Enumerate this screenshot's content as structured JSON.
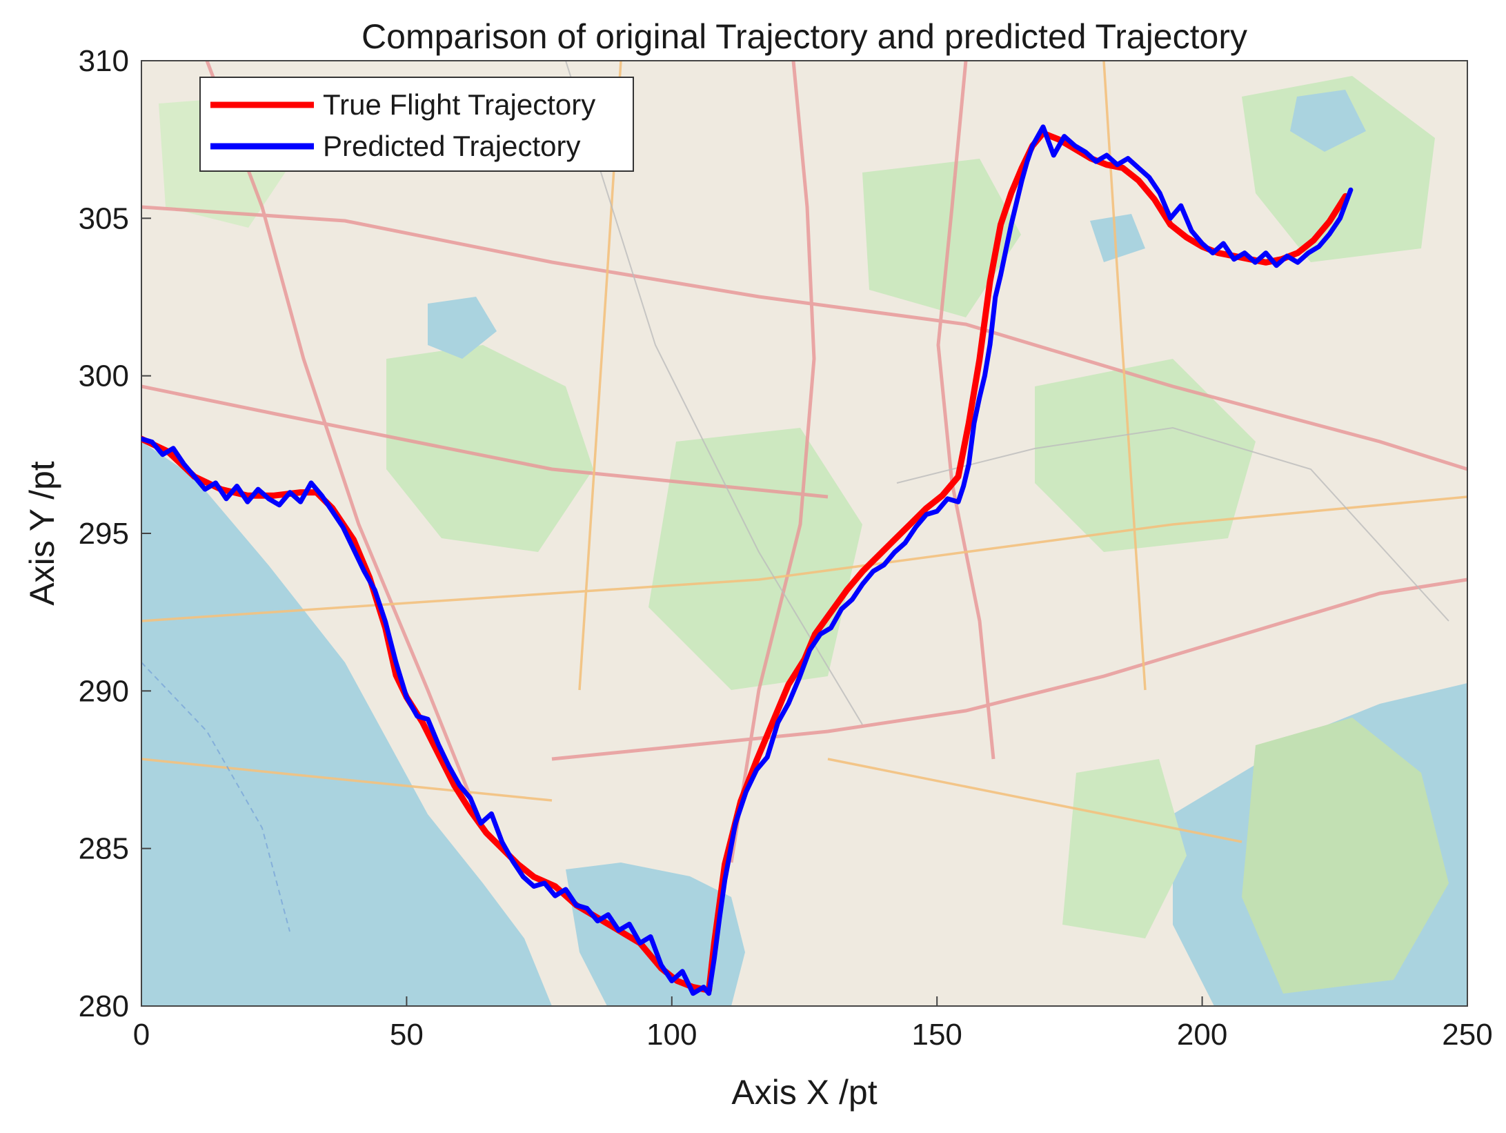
{
  "chart_data": {
    "type": "line",
    "title": "Comparison of original Trajectory and predicted Trajectory",
    "xlabel": "Axis X /pt",
    "ylabel": "Axis Y /pt",
    "xlim": [
      0,
      250
    ],
    "ylim": [
      280,
      310
    ],
    "xticks": [
      "0",
      "50",
      "100",
      "150",
      "200",
      "250"
    ],
    "yticks": [
      "280",
      "285",
      "290",
      "295",
      "300",
      "305",
      "310"
    ],
    "background": "street map",
    "legend_position": "top-left",
    "series": [
      {
        "name": "True Flight Trajectory",
        "color": "#ff0000",
        "x": [
          0,
          5,
          10,
          15,
          20,
          25,
          30,
          33,
          36,
          40,
          43,
          46,
          48,
          50,
          53,
          56,
          59,
          62,
          65,
          68,
          71,
          74,
          78,
          82,
          86,
          90,
          94,
          98,
          101,
          104,
          107,
          108,
          110,
          113,
          116,
          119,
          122,
          125,
          127,
          130,
          133,
          136,
          139,
          142,
          145,
          148,
          151,
          154,
          156,
          158,
          160,
          162,
          164,
          166,
          168,
          170,
          173,
          176,
          179,
          182,
          185,
          188,
          191,
          194,
          197,
          200,
          203,
          206,
          209,
          212,
          215,
          218,
          221,
          224,
          227
        ],
        "y": [
          298,
          297.6,
          296.8,
          296.4,
          296.2,
          296.2,
          296.3,
          296.3,
          295.8,
          294.8,
          293.6,
          292.0,
          290.5,
          289.8,
          289.0,
          288.0,
          287.0,
          286.2,
          285.5,
          285.0,
          284.5,
          284.1,
          283.8,
          283.2,
          282.8,
          282.4,
          282.0,
          281.2,
          280.8,
          280.6,
          280.5,
          282.0,
          284.5,
          286.5,
          287.8,
          289.0,
          290.2,
          291.0,
          291.8,
          292.5,
          293.2,
          293.8,
          294.3,
          294.8,
          295.3,
          295.8,
          296.2,
          296.8,
          298.5,
          300.5,
          303.0,
          304.8,
          305.8,
          306.6,
          307.3,
          307.7,
          307.5,
          307.2,
          306.9,
          306.7,
          306.6,
          306.2,
          305.6,
          304.8,
          304.4,
          304.1,
          303.9,
          303.8,
          303.7,
          303.6,
          303.7,
          303.9,
          304.3,
          304.9,
          305.7
        ]
      },
      {
        "name": "Predicted Trajectory",
        "color": "#0000ff",
        "x": [
          0,
          2,
          4,
          6,
          8,
          10,
          12,
          14,
          16,
          18,
          20,
          22,
          24,
          26,
          28,
          30,
          32,
          34,
          36,
          38,
          40,
          42,
          44,
          46,
          48,
          50,
          52,
          54,
          56,
          58,
          60,
          62,
          64,
          66,
          68,
          70,
          72,
          74,
          76,
          78,
          80,
          82,
          84,
          86,
          88,
          90,
          92,
          94,
          96,
          98,
          100,
          102,
          104,
          106,
          107,
          108,
          109,
          110,
          112,
          114,
          116,
          118,
          120,
          122,
          124,
          126,
          128,
          130,
          132,
          134,
          136,
          138,
          140,
          142,
          144,
          146,
          148,
          150,
          152,
          154,
          155,
          156,
          157,
          158,
          159,
          160,
          161,
          162,
          163,
          164,
          165,
          166,
          167,
          168,
          169,
          170,
          172,
          174,
          176,
          178,
          180,
          182,
          184,
          186,
          188,
          190,
          192,
          194,
          196,
          198,
          200,
          202,
          204,
          206,
          208,
          210,
          212,
          214,
          216,
          218,
          220,
          222,
          224,
          226,
          228
        ],
        "y": [
          298.0,
          297.9,
          297.5,
          297.7,
          297.2,
          296.8,
          296.4,
          296.6,
          296.1,
          296.5,
          296.0,
          296.4,
          296.1,
          295.9,
          296.3,
          296.0,
          296.6,
          296.2,
          295.7,
          295.2,
          294.5,
          293.8,
          293.2,
          292.2,
          290.9,
          289.8,
          289.2,
          289.1,
          288.3,
          287.6,
          287.0,
          286.6,
          285.8,
          286.1,
          285.2,
          284.6,
          284.1,
          283.8,
          283.9,
          283.5,
          283.7,
          283.2,
          283.1,
          282.7,
          282.9,
          282.4,
          282.6,
          282.0,
          282.2,
          281.3,
          280.8,
          281.1,
          280.4,
          280.6,
          280.4,
          281.5,
          282.8,
          284.0,
          285.8,
          286.8,
          287.5,
          287.9,
          289.0,
          289.6,
          290.4,
          291.3,
          291.8,
          292.0,
          292.6,
          292.9,
          293.4,
          293.8,
          294.0,
          294.4,
          294.7,
          295.2,
          295.6,
          295.7,
          296.1,
          296.0,
          296.5,
          297.2,
          298.5,
          299.3,
          300.0,
          301.0,
          302.5,
          303.2,
          304.0,
          304.8,
          305.5,
          306.2,
          306.8,
          307.3,
          307.6,
          307.9,
          307.0,
          307.6,
          307.3,
          307.1,
          306.8,
          307.0,
          306.7,
          306.9,
          306.6,
          306.3,
          305.8,
          305.0,
          305.4,
          304.6,
          304.2,
          303.9,
          304.2,
          303.7,
          303.9,
          303.6,
          303.9,
          303.5,
          303.8,
          303.6,
          303.9,
          304.1,
          304.5,
          305.0,
          305.9
        ]
      }
    ]
  }
}
